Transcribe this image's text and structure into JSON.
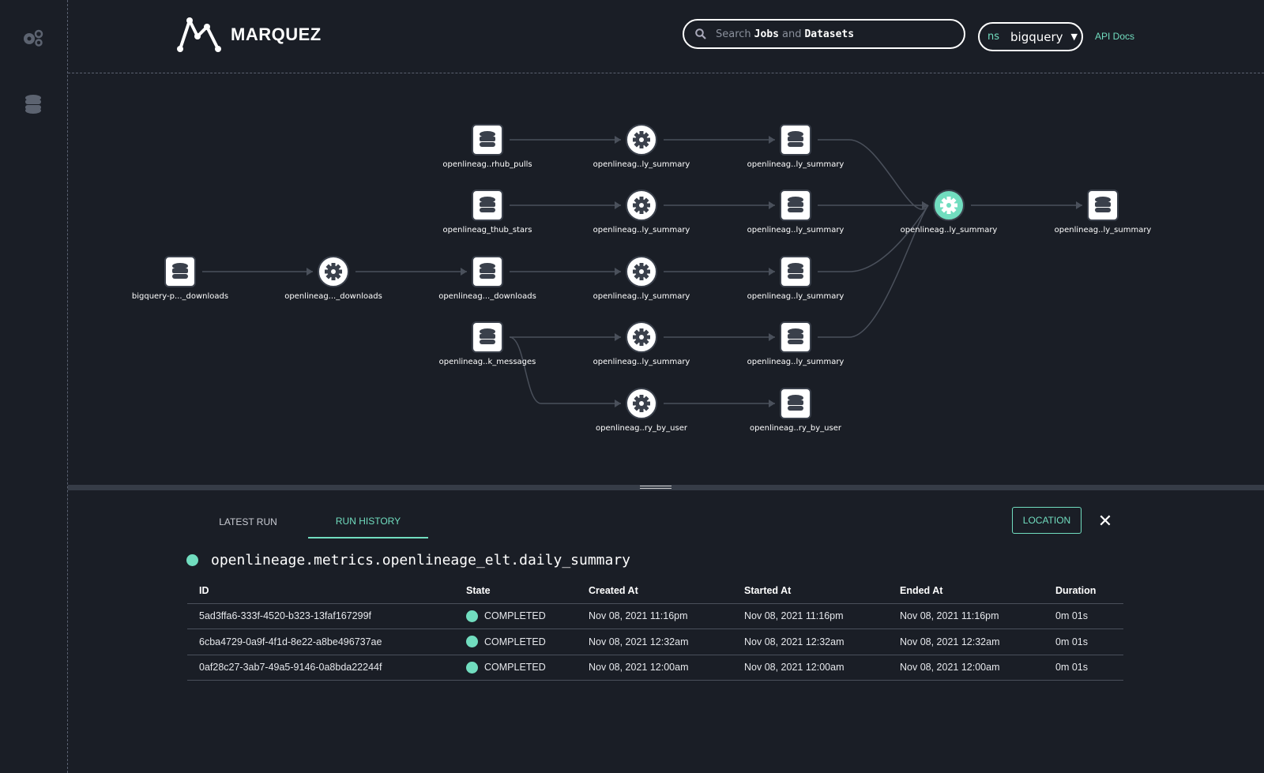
{
  "app": {
    "name": "MARQUEZ"
  },
  "header": {
    "search": {
      "prefix": "Search",
      "jobs": "Jobs",
      "and": "and",
      "datasets": "Datasets"
    },
    "namespace": {
      "prefix": "ns",
      "value": "bigquery"
    },
    "api_docs": "API Docs"
  },
  "colors": {
    "accent": "#71ddbf",
    "background": "#1a1e26"
  },
  "sidebar": {
    "items": [
      {
        "icon": "gears-icon",
        "label": "Jobs"
      },
      {
        "icon": "database-icon",
        "label": "Datasets"
      }
    ]
  },
  "graph": {
    "nodes": [
      {
        "type": "dataset",
        "label": "bigquery-p..._downloads"
      },
      {
        "type": "job",
        "label": "openlineag..._downloads"
      },
      {
        "type": "dataset",
        "label": "openlineag..._downloads"
      },
      {
        "type": "dataset",
        "label": "openlineag..rhub_pulls"
      },
      {
        "type": "dataset",
        "label": "openlineag_thub_stars"
      },
      {
        "type": "dataset",
        "label": "openlineag..k_messages"
      },
      {
        "type": "job",
        "label": "openlineag..ly_summary"
      },
      {
        "type": "job",
        "label": "openlineag..ly_summary"
      },
      {
        "type": "job",
        "label": "openlineag..ly_summary"
      },
      {
        "type": "job",
        "label": "openlineag..ly_summary"
      },
      {
        "type": "job",
        "label": "openlineag..ry_by_user"
      },
      {
        "type": "dataset",
        "label": "openlineag..ly_summary"
      },
      {
        "type": "dataset",
        "label": "openlineag..ly_summary"
      },
      {
        "type": "dataset",
        "label": "openlineag..ly_summary"
      },
      {
        "type": "dataset",
        "label": "openlineag..ly_summary"
      },
      {
        "type": "dataset",
        "label": "openlineag..ry_by_user"
      },
      {
        "type": "job",
        "label": "openlineag..ly_summary",
        "selected": true
      },
      {
        "type": "dataset",
        "label": "openlineag..ly_summary"
      }
    ],
    "edges": [
      [
        0,
        1
      ],
      [
        1,
        2
      ],
      [
        3,
        6
      ],
      [
        4,
        7
      ],
      [
        2,
        8
      ],
      [
        5,
        9
      ],
      [
        5,
        10
      ],
      [
        6,
        11
      ],
      [
        7,
        12
      ],
      [
        8,
        13
      ],
      [
        9,
        14
      ],
      [
        10,
        15
      ],
      [
        11,
        16
      ],
      [
        12,
        16
      ],
      [
        13,
        16
      ],
      [
        14,
        16
      ],
      [
        16,
        17
      ]
    ]
  },
  "panel": {
    "tabs": [
      {
        "label": "LATEST RUN",
        "active": false
      },
      {
        "label": "RUN HISTORY",
        "active": true
      }
    ],
    "location_button": "LOCATION",
    "close": "✕",
    "job_name": "openlineage.metrics.openlineage_elt.daily_summary",
    "columns": [
      "ID",
      "State",
      "Created At",
      "Started At",
      "Ended At",
      "Duration"
    ],
    "rows": [
      [
        "5ad3ffa6-333f-4520-b323-13faf167299f",
        "COMPLETED",
        "Nov 08, 2021 11:16pm",
        "Nov 08, 2021 11:16pm",
        "Nov 08, 2021 11:16pm",
        "0m 01s"
      ],
      [
        "6cba4729-0a9f-4f1d-8e22-a8be496737ae",
        "COMPLETED",
        "Nov 08, 2021 12:32am",
        "Nov 08, 2021 12:32am",
        "Nov 08, 2021 12:32am",
        "0m 01s"
      ],
      [
        "0af28c27-3ab7-49a5-9146-0a8bda22244f",
        "COMPLETED",
        "Nov 08, 2021 12:00am",
        "Nov 08, 2021 12:00am",
        "Nov 08, 2021 12:00am",
        "0m 01s"
      ]
    ]
  }
}
